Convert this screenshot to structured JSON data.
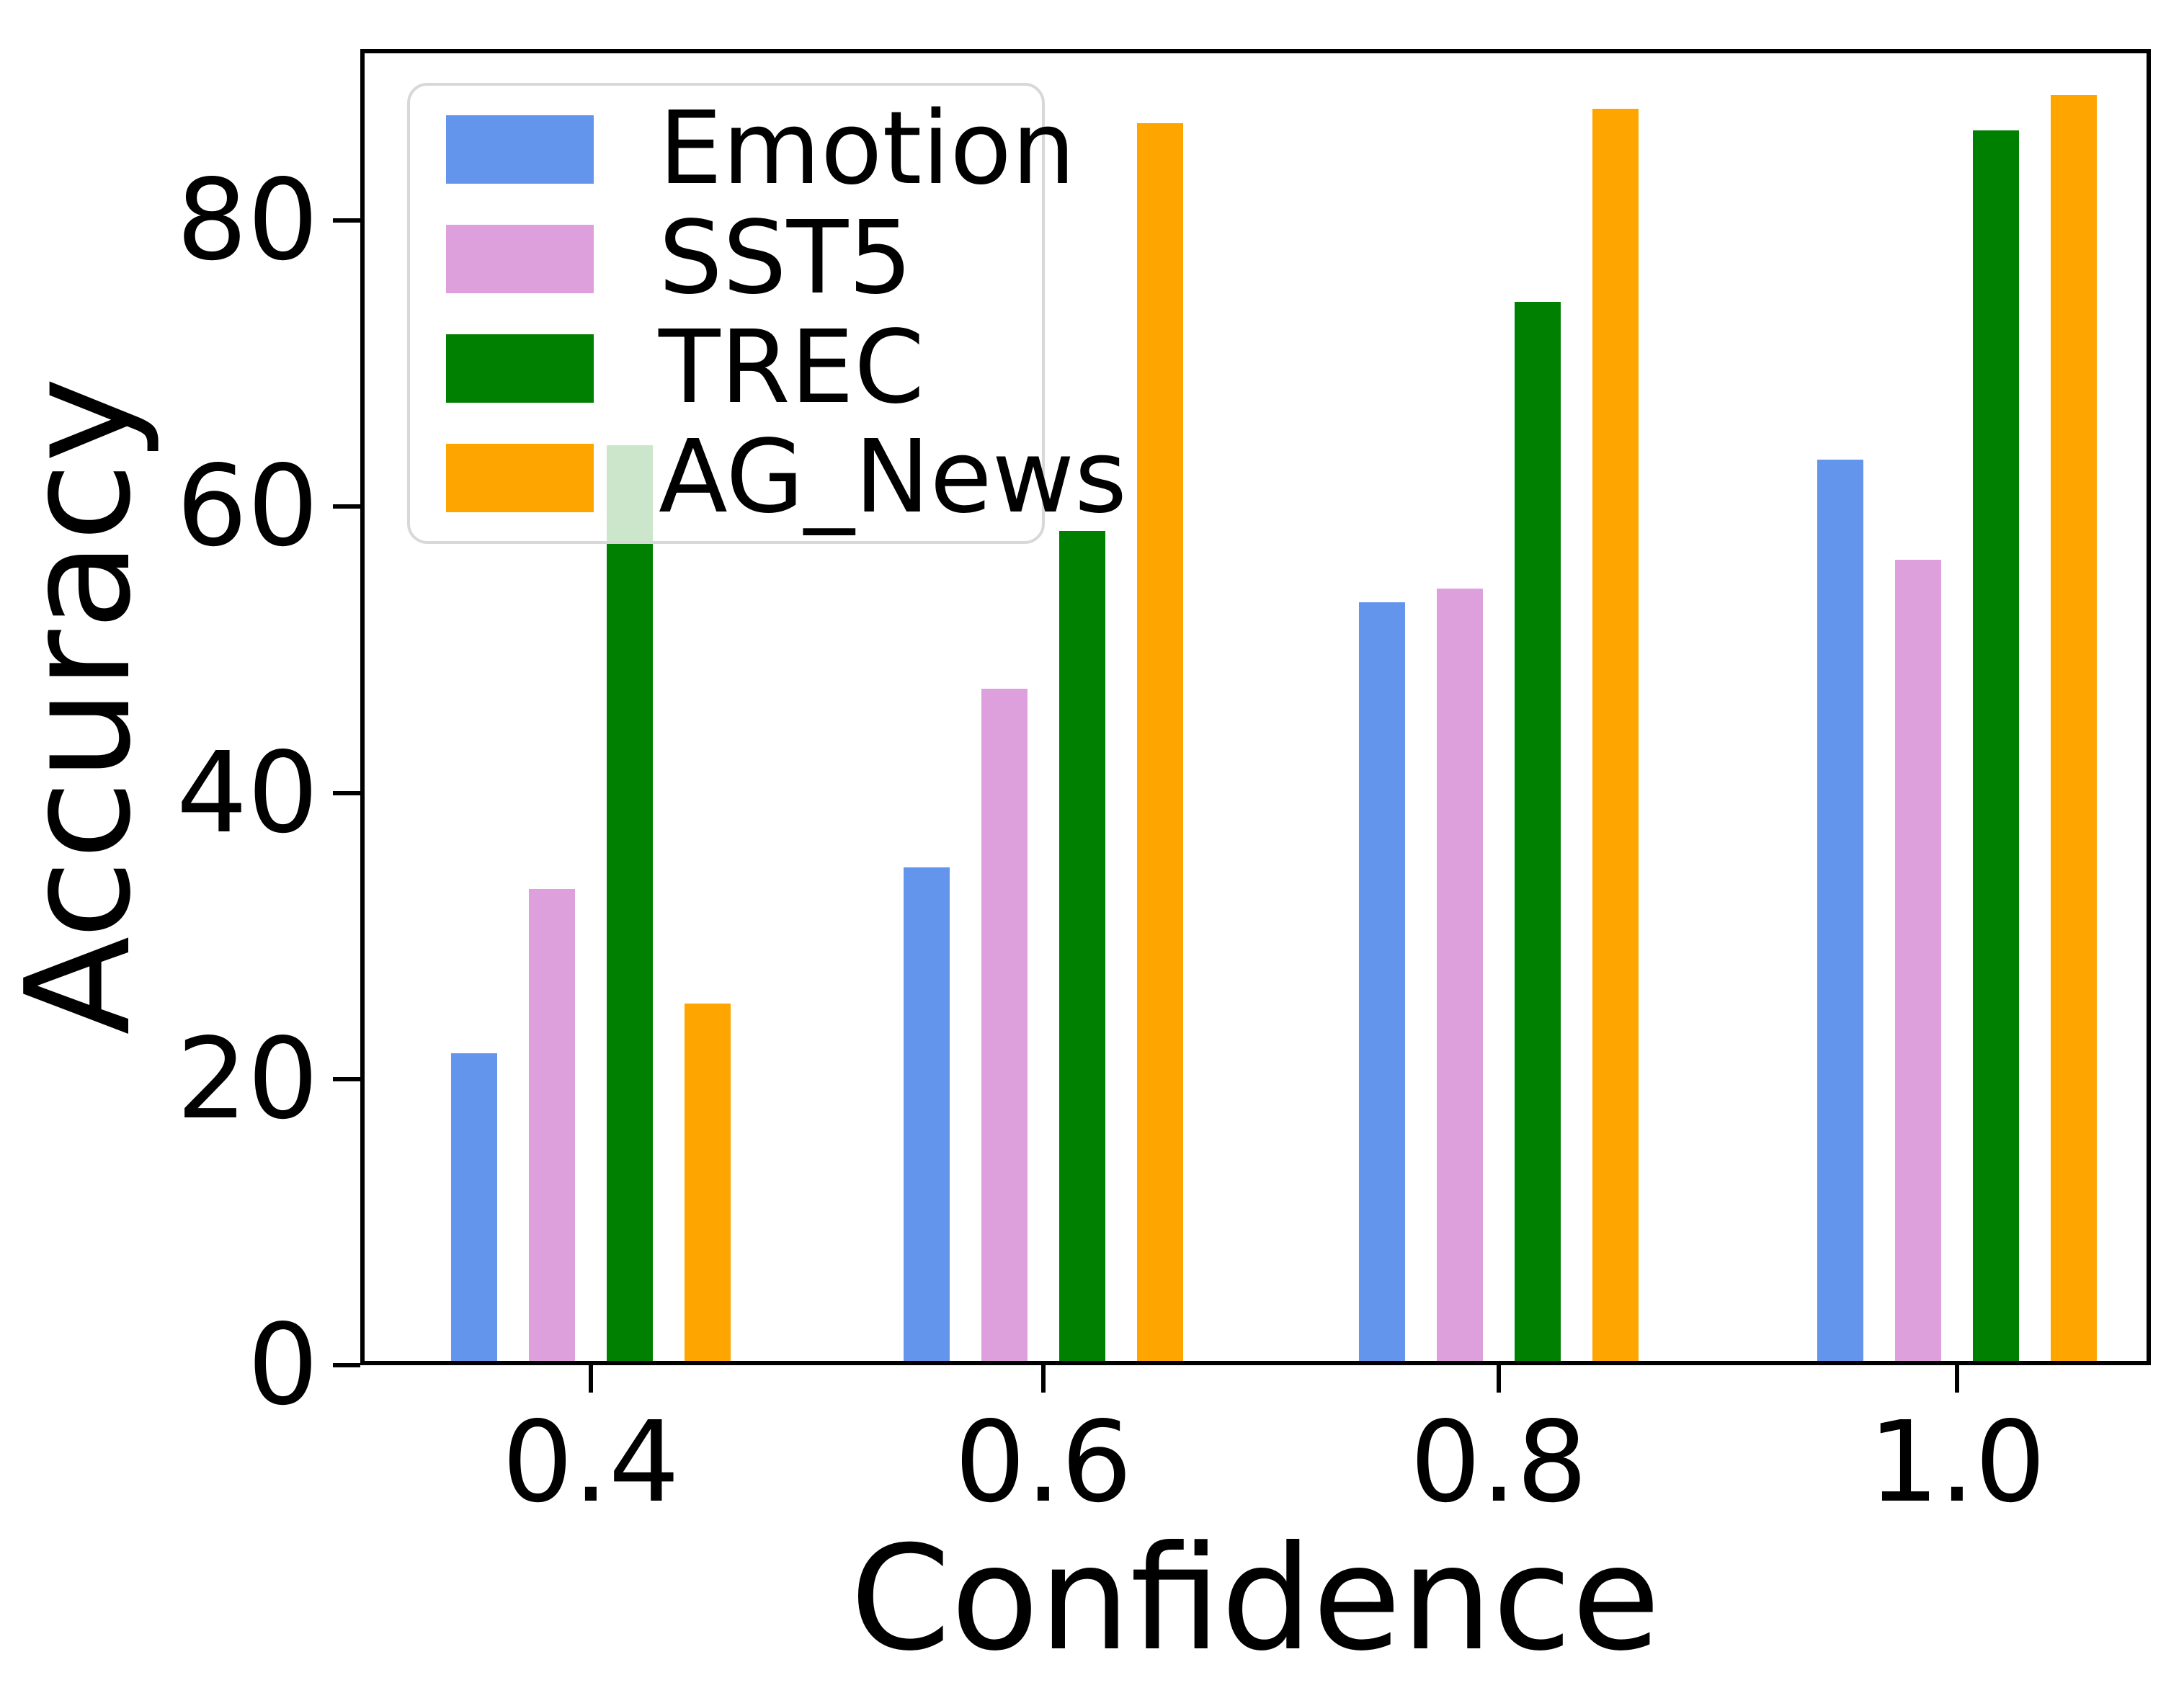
{
  "figure": {
    "background": "#ffffff",
    "axis_color": "#000000",
    "legend_border_color": "#d8d8d8"
  },
  "chart_data": {
    "type": "bar",
    "title": "",
    "xlabel": "Confidence",
    "ylabel": "Accuracy",
    "categories": [
      "0.4",
      "0.6",
      "0.8",
      "1.0"
    ],
    "series": [
      {
        "name": "Emotion",
        "color": "#6495ED",
        "values": [
          21.5,
          34.5,
          53,
          63
        ]
      },
      {
        "name": "SST5",
        "color": "#DDA0DD",
        "values": [
          33,
          47,
          54,
          56
        ]
      },
      {
        "name": "TREC",
        "color": "#008000",
        "values": [
          64,
          58,
          74,
          86
        ]
      },
      {
        "name": "AG_News",
        "color": "#FFA500",
        "values": [
          25,
          86.5,
          87.5,
          88.5
        ]
      }
    ],
    "ytick_labels": [
      "0",
      "20",
      "40",
      "60",
      "80"
    ],
    "ytick_values": [
      0,
      20,
      40,
      60,
      80
    ],
    "ylim": [
      0,
      92
    ],
    "grid": false,
    "legend_position": "upper-left",
    "legend_framealpha": 0.8
  }
}
